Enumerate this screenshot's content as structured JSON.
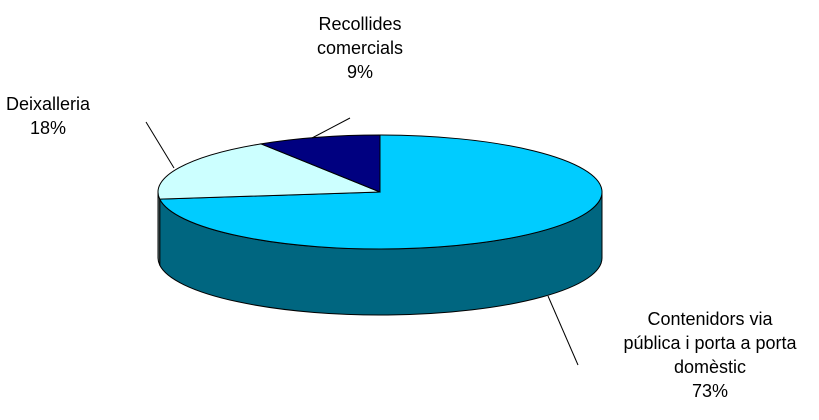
{
  "chart_data": {
    "type": "pie",
    "style": "3d",
    "slices": [
      {
        "label_lines": [
          "Contenidors via",
          "pública i porta a porta",
          "domèstic"
        ],
        "value": 73,
        "value_label": "73%",
        "color": "#00CCFF",
        "side_color": "#006680"
      },
      {
        "label_lines": [
          "Deixalleria"
        ],
        "value": 18,
        "value_label": "18%",
        "color": "#CCFFFF",
        "side_color": "#668080"
      },
      {
        "label_lines": [
          "Recollides",
          "comercials"
        ],
        "value": 9,
        "value_label": "9%",
        "color": "#000080",
        "side_color": "#000040"
      }
    ],
    "outline_color": "#000000",
    "background": "#ffffff"
  }
}
